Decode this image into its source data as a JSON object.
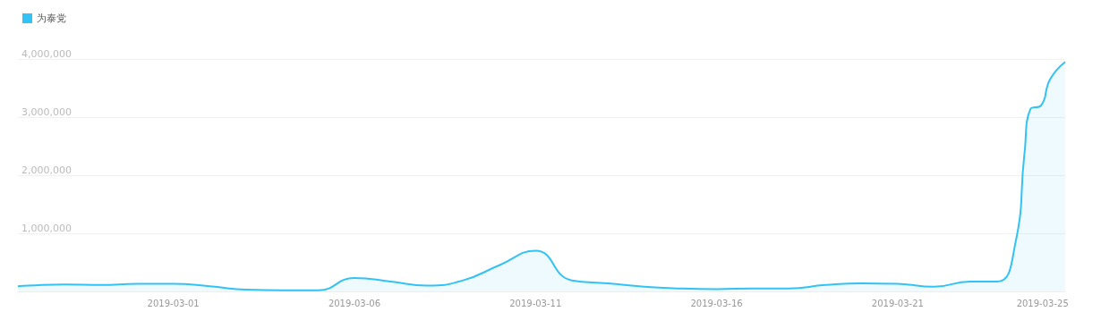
{
  "chart_data": {
    "type": "area",
    "legend": "top left",
    "grid": "y",
    "xlim": [
      "2019-02-24T17:00",
      "2019-03-25T15:00"
    ],
    "xticks": [
      "2019-03-01",
      "2019-03-06",
      "2019-03-11",
      "2019-03-16",
      "2019-03-21",
      "2019-03-25"
    ],
    "ylim": [
      0,
      4000000
    ],
    "yticks": [
      {
        "value": 0,
        "label": null
      },
      {
        "value": 1000000,
        "label": "1,000,000"
      },
      {
        "value": 2000000,
        "label": "2,000,000"
      },
      {
        "value": 3000000,
        "label": "3,000,000"
      },
      {
        "value": 4000000,
        "label": "4,000,000"
      }
    ],
    "series": [
      {
        "name": "为泰党",
        "color": "#33c2f5",
        "x": [
          "2019-02-24T17:00",
          "2019-02-25",
          "2019-02-26",
          "2019-02-27",
          "2019-02-28",
          "2019-03-01",
          "2019-03-02",
          "2019-03-03",
          "2019-03-04",
          "2019-03-05",
          "2019-03-06",
          "2019-03-07",
          "2019-03-08",
          "2019-03-09",
          "2019-03-10",
          "2019-03-11",
          "2019-03-12",
          "2019-03-13",
          "2019-03-14",
          "2019-03-15",
          "2019-03-16",
          "2019-03-17",
          "2019-03-18",
          "2019-03-19",
          "2019-03-20",
          "2019-03-21",
          "2019-03-22",
          "2019-03-23",
          "2019-03-23T18:00",
          "2019-03-24T06:00",
          "2019-03-24T12:00",
          "2019-03-24T16:00",
          "2019-03-24T23:00",
          "2019-03-25T05:00",
          "2019-03-25T15:00"
        ],
        "values": [
          90000,
          100000,
          120000,
          110000,
          130000,
          130000,
          90000,
          30000,
          20000,
          20000,
          230000,
          170000,
          100000,
          190000,
          450000,
          700000,
          190000,
          140000,
          80000,
          50000,
          40000,
          50000,
          50000,
          110000,
          140000,
          130000,
          80000,
          170000,
          170000,
          830000,
          2370000,
          3140000,
          3200000,
          3650000,
          3950000
        ]
      }
    ]
  }
}
